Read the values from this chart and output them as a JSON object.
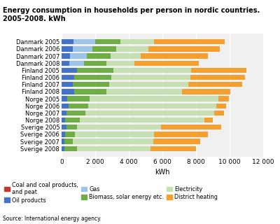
{
  "title": "Energy consumption in households per person in nordic countries.\n2005-2008. kWh",
  "xlabel": "kWh",
  "source": "Source: International energy agency.",
  "categories": [
    "Danmark 2005",
    "Danmark 2006",
    "Danmark 2007",
    "Danmark 2008",
    "Finland 2005",
    "Finland 2006",
    "Finland 2007",
    "Finland 2008",
    "Norge 2005",
    "Norge 2006",
    "Norge 2007",
    "Norge 2008",
    "Sverige 2005",
    "Sverige 2006",
    "Sverige 2007",
    "Sverige 2008"
  ],
  "series": {
    "Coal and coal products,\nand peat": {
      "color": "#c0392b",
      "values": [
        0,
        0,
        0,
        0,
        0,
        0,
        0,
        0,
        0,
        0,
        0,
        0,
        0,
        0,
        0,
        0
      ]
    },
    "Oil products": {
      "color": "#4472c4",
      "values": [
        700,
        650,
        500,
        450,
        900,
        750,
        650,
        750,
        350,
        400,
        300,
        200,
        300,
        200,
        150,
        150
      ]
    },
    "Gas": {
      "color": "#9dc3e6",
      "values": [
        1300,
        1200,
        1000,
        900,
        0,
        0,
        0,
        0,
        0,
        0,
        0,
        0,
        0,
        0,
        0,
        0
      ]
    },
    "Biomass, solar energy etc.": {
      "color": "#70ad47",
      "values": [
        1500,
        1400,
        1400,
        1300,
        2200,
        2200,
        2200,
        1900,
        1300,
        1200,
        1100,
        900,
        600,
        600,
        500,
        750
      ]
    },
    "Electricity": {
      "color": "#c6e0b4",
      "values": [
        2000,
        1900,
        1800,
        1700,
        4600,
        4700,
        4700,
        4500,
        7700,
        7600,
        7700,
        7400,
        5000,
        4700,
        4800,
        4400
      ]
    },
    "District heating": {
      "color": "#f4a030",
      "values": [
        4200,
        4250,
        4000,
        3800,
        3300,
        3250,
        3200,
        2900,
        600,
        600,
        550,
        500,
        3600,
        3200,
        2800,
        2700
      ]
    }
  },
  "xlim": [
    0,
    12000
  ],
  "xticks": [
    0,
    2000,
    4000,
    6000,
    8000,
    10000,
    12000
  ],
  "xtick_labels": [
    "0",
    "2 000",
    "4 000",
    "6 000",
    "8 000",
    "10 000",
    "12 000"
  ],
  "legend_order": [
    "Coal and coal products,\nand peat",
    "Oil products",
    "Gas",
    "Biomass, solar energy etc.",
    "Electricity",
    "District heating"
  ],
  "bg_color": "#f0f0f0"
}
